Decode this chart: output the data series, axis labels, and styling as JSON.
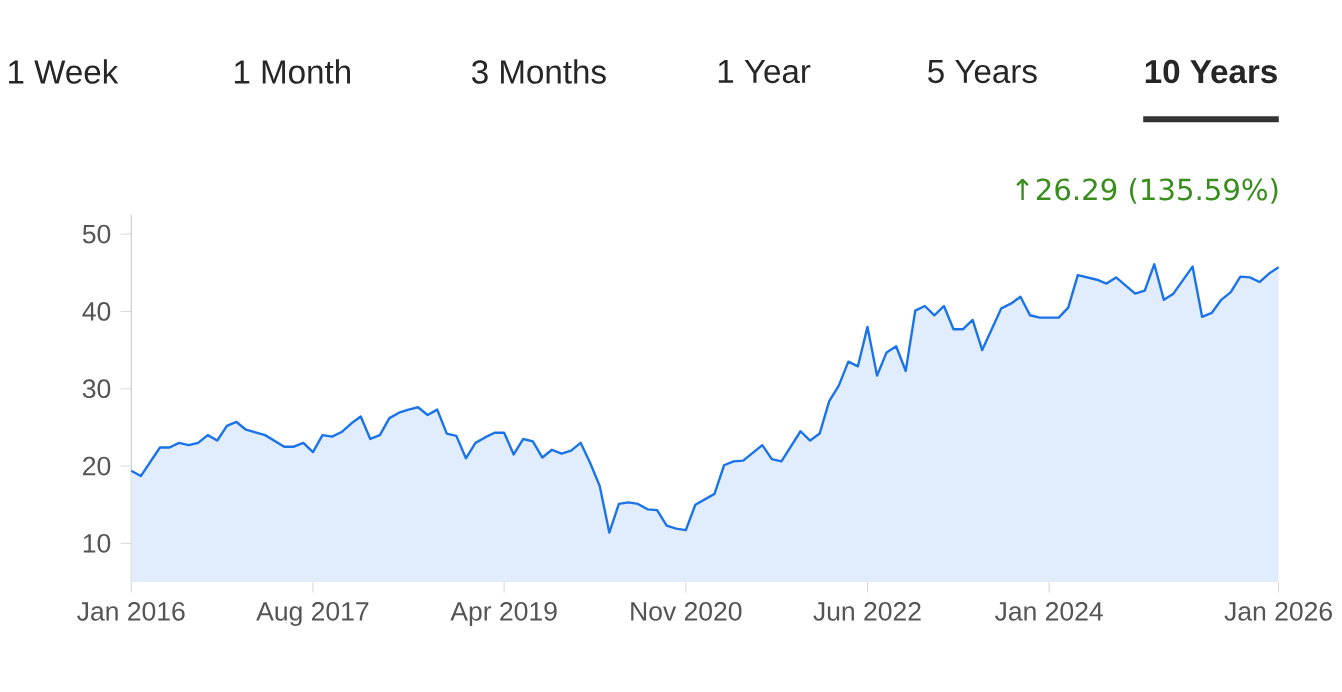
{
  "chart_data": {
    "type": "area",
    "color": "#1a73e8",
    "annotations": [
      "1 Week",
      "1 Month",
      "3 Months",
      "1 Year",
      "5 Years",
      "10 Years",
      "↑26.29 (135.59%)"
    ],
    "x": [
      "2016-01",
      "2016-02",
      "2016-04",
      "2016-05",
      "2016-06",
      "2016-07",
      "2016-08",
      "2016-09",
      "2016-10",
      "2016-11",
      "2016-12",
      "2017-01",
      "2017-03",
      "2017-05",
      "2017-06",
      "2017-07",
      "2017-08",
      "2017-09",
      "2017-10",
      "2017-11",
      "2017-12",
      "2018-01",
      "2018-02",
      "2018-03",
      "2018-04",
      "2018-05",
      "2018-06",
      "2018-07",
      "2018-08",
      "2018-09",
      "2018-10",
      "2018-11",
      "2018-12",
      "2019-01",
      "2019-02",
      "2019-03",
      "2019-04",
      "2019-05",
      "2019-06",
      "2019-07",
      "2019-08",
      "2019-09",
      "2019-10",
      "2019-11",
      "2019-12",
      "2020-01",
      "2020-02",
      "2020-03",
      "2020-04",
      "2020-05",
      "2020-06",
      "2020-07",
      "2020-08",
      "2020-09",
      "2020-10",
      "2020-11",
      "2020-12",
      "2021-02",
      "2021-03",
      "2021-04",
      "2021-05",
      "2021-07",
      "2021-08",
      "2021-09",
      "2021-11",
      "2021-12",
      "2022-01",
      "2022-02",
      "2022-03",
      "2022-04",
      "2022-05",
      "2022-06",
      "2022-07",
      "2022-08",
      "2022-09",
      "2022-10",
      "2022-11",
      "2022-12",
      "2023-01",
      "2023-02",
      "2023-03",
      "2023-04",
      "2023-05",
      "2023-06",
      "2023-08",
      "2023-09",
      "2023-10",
      "2023-11",
      "2023-12",
      "2024-02",
      "2024-03",
      "2024-04",
      "2024-06",
      "2024-07",
      "2024-08",
      "2024-10",
      "2024-11",
      "2024-12",
      "2025-01",
      "2025-02",
      "2025-04",
      "2025-05",
      "2025-06",
      "2025-07",
      "2025-08",
      "2025-09",
      "2025-10",
      "2025-11",
      "2025-12",
      "2026-01"
    ],
    "values": [
      19.4,
      18.7,
      22.4,
      22.4,
      23.0,
      22.7,
      23.0,
      24.0,
      23.3,
      25.2,
      25.7,
      24.7,
      24.0,
      22.5,
      22.5,
      23.0,
      21.8,
      24.0,
      23.8,
      24.4,
      25.5,
      26.4,
      23.5,
      24.0,
      26.2,
      26.9,
      27.3,
      27.6,
      26.6,
      27.3,
      24.2,
      23.9,
      21.0,
      23.0,
      23.7,
      24.3,
      24.3,
      21.5,
      23.5,
      23.2,
      21.1,
      22.1,
      21.6,
      22.0,
      23.0,
      20.4,
      17.4,
      11.4,
      15.1,
      15.3,
      15.1,
      14.4,
      14.3,
      12.3,
      11.9,
      11.7,
      15.0,
      16.4,
      20.1,
      20.6,
      20.7,
      22.7,
      20.9,
      20.6,
      24.5,
      23.3,
      24.2,
      28.4,
      30.4,
      33.5,
      32.9,
      38.0,
      31.7,
      34.7,
      35.5,
      32.3,
      40.1,
      40.7,
      39.5,
      40.7,
      37.7,
      37.7,
      38.9,
      35.0,
      40.4,
      41.0,
      41.9,
      39.5,
      39.2,
      39.2,
      40.5,
      44.7,
      44.1,
      43.6,
      44.4,
      42.3,
      42.7,
      46.1,
      41.5,
      42.3,
      45.8,
      39.3,
      39.8,
      41.5,
      42.5,
      44.5,
      44.4,
      43.8,
      44.9,
      45.7
    ],
    "xlim": [
      "2016-01",
      "2026-01"
    ],
    "ylim": [
      5,
      52.5
    ],
    "xticks": [
      {
        "value": "2016-01",
        "label": "Jan 2016"
      },
      {
        "value": "2017-08",
        "label": "Aug 2017"
      },
      {
        "value": "2019-04",
        "label": "Apr 2019"
      },
      {
        "value": "2020-11",
        "label": "Nov 2020"
      },
      {
        "value": "2022-06",
        "label": "Jun 2022"
      },
      {
        "value": "2024-01",
        "label": "Jan 2024"
      },
      {
        "value": "2026-01",
        "label": "Jan 2026"
      }
    ],
    "yticks": [
      10,
      20,
      30,
      40,
      50
    ]
  }
}
